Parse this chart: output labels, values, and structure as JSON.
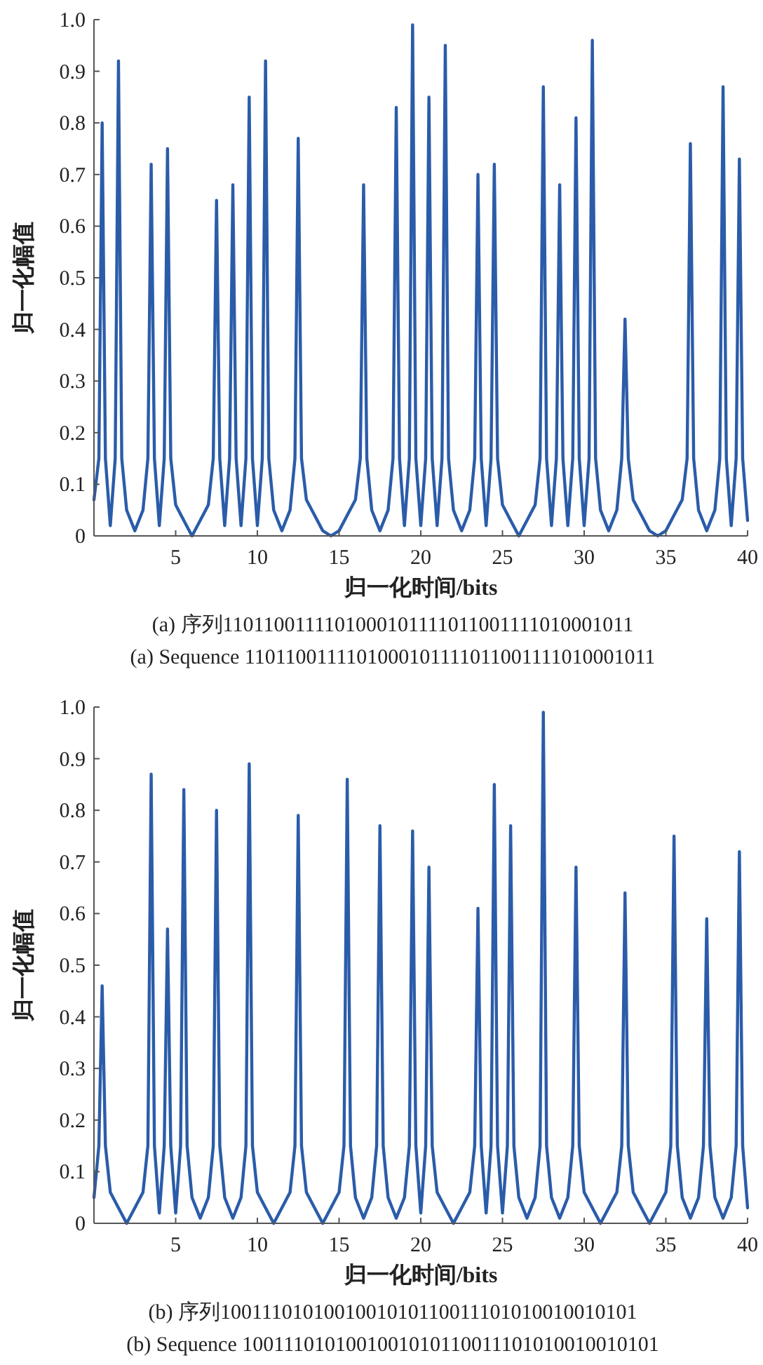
{
  "chart_data": [
    {
      "type": "line",
      "xlabel": "归一化时间/bits",
      "ylabel": "归一化幅值",
      "xlim": [
        0,
        40
      ],
      "ylim": [
        0,
        1
      ],
      "xticks": [
        5,
        10,
        15,
        20,
        25,
        30,
        35,
        40
      ],
      "yticks": [
        0,
        0.1,
        0.2,
        0.3,
        0.4,
        0.5,
        0.6,
        0.7,
        0.8,
        0.9,
        {
          "value": 1,
          "label": "1.0"
        }
      ],
      "annotations": [
        "(a) 序列1101100111101000101111011001111010001011",
        "(a) Sequence 1101100111101000101111011001111010001011"
      ],
      "x": [
        0,
        0.3,
        0.5,
        0.7,
        1.0,
        1.3,
        1.5,
        1.7,
        2.0,
        2.5,
        3.0,
        3.3,
        3.5,
        3.7,
        4.0,
        4.3,
        4.5,
        4.7,
        5.0,
        5.5,
        6.0,
        6.5,
        7.0,
        7.3,
        7.5,
        7.7,
        8.0,
        8.3,
        8.5,
        8.7,
        9.0,
        9.3,
        9.5,
        9.7,
        10.0,
        10.3,
        10.5,
        10.7,
        11.0,
        11.5,
        12.0,
        12.3,
        12.5,
        12.7,
        13.0,
        13.5,
        14.0,
        14.5,
        15.0,
        15.5,
        16.0,
        16.3,
        16.5,
        16.7,
        17.0,
        17.5,
        18.0,
        18.3,
        18.5,
        18.7,
        19.0,
        19.3,
        19.5,
        19.7,
        20.0,
        20.3,
        20.5,
        20.7,
        21.0,
        21.3,
        21.5,
        21.7,
        22.0,
        22.5,
        23.0,
        23.3,
        23.5,
        23.7,
        24.0,
        24.3,
        24.5,
        24.7,
        25.0,
        25.5,
        26.0,
        26.5,
        27.0,
        27.3,
        27.5,
        27.7,
        28.0,
        28.3,
        28.5,
        28.7,
        29.0,
        29.3,
        29.5,
        29.7,
        30.0,
        30.3,
        30.5,
        30.7,
        31.0,
        31.5,
        32.0,
        32.3,
        32.5,
        32.7,
        33.0,
        33.5,
        34.0,
        34.5,
        35.0,
        35.5,
        36.0,
        36.3,
        36.5,
        36.7,
        37.0,
        37.5,
        38.0,
        38.3,
        38.5,
        38.7,
        39.0,
        39.3,
        39.5,
        39.7,
        40
      ],
      "series": [
        {
          "color": "#2a5caa",
          "values": [
            0.07,
            0.15,
            0.8,
            0.15,
            0.02,
            0.15,
            0.92,
            0.15,
            0.05,
            0.01,
            0.05,
            0.15,
            0.72,
            0.15,
            0.02,
            0.15,
            0.75,
            0.15,
            0.06,
            0.03,
            0.0,
            0.03,
            0.06,
            0.15,
            0.65,
            0.15,
            0.02,
            0.15,
            0.68,
            0.15,
            0.02,
            0.15,
            0.85,
            0.15,
            0.02,
            0.15,
            0.92,
            0.15,
            0.05,
            0.01,
            0.05,
            0.15,
            0.77,
            0.15,
            0.07,
            0.04,
            0.01,
            0.0,
            0.01,
            0.04,
            0.07,
            0.15,
            0.68,
            0.15,
            0.05,
            0.01,
            0.05,
            0.15,
            0.83,
            0.15,
            0.02,
            0.15,
            0.99,
            0.15,
            0.02,
            0.15,
            0.85,
            0.15,
            0.02,
            0.15,
            0.95,
            0.15,
            0.05,
            0.01,
            0.05,
            0.15,
            0.7,
            0.15,
            0.02,
            0.15,
            0.72,
            0.15,
            0.06,
            0.03,
            0.0,
            0.03,
            0.06,
            0.15,
            0.87,
            0.15,
            0.02,
            0.15,
            0.68,
            0.15,
            0.02,
            0.15,
            0.81,
            0.15,
            0.02,
            0.15,
            0.96,
            0.15,
            0.05,
            0.01,
            0.05,
            0.15,
            0.42,
            0.15,
            0.07,
            0.04,
            0.01,
            0.0,
            0.01,
            0.04,
            0.07,
            0.15,
            0.76,
            0.15,
            0.05,
            0.01,
            0.05,
            0.15,
            0.87,
            0.15,
            0.02,
            0.15,
            0.73,
            0.15,
            0.03
          ]
        }
      ]
    },
    {
      "type": "line",
      "xlabel": "归一化时间/bits",
      "ylabel": "归一化幅值",
      "xlim": [
        0,
        40
      ],
      "ylim": [
        0,
        1
      ],
      "xticks": [
        5,
        10,
        15,
        20,
        25,
        30,
        35,
        40
      ],
      "yticks": [
        0,
        0.1,
        0.2,
        0.3,
        0.4,
        0.5,
        0.6,
        0.7,
        0.8,
        0.9,
        {
          "value": 1,
          "label": "1.0"
        }
      ],
      "annotations": [
        "(b) 序列1001110101001001010110011101010010010101",
        "(b) Sequence 1001110101001001010110011101010010010101"
      ],
      "x": [
        0,
        0.3,
        0.5,
        0.7,
        1.0,
        1.5,
        2.0,
        2.5,
        3.0,
        3.3,
        3.5,
        3.7,
        4.0,
        4.3,
        4.5,
        4.7,
        5.0,
        5.3,
        5.5,
        5.7,
        6.0,
        6.5,
        7.0,
        7.3,
        7.5,
        7.7,
        8.0,
        8.5,
        9.0,
        9.3,
        9.5,
        9.7,
        10.0,
        10.5,
        11.0,
        11.5,
        12.0,
        12.3,
        12.5,
        12.7,
        13.0,
        13.5,
        14.0,
        14.5,
        15.0,
        15.3,
        15.5,
        15.7,
        16.0,
        16.5,
        17.0,
        17.3,
        17.5,
        17.7,
        18.0,
        18.5,
        19.0,
        19.3,
        19.5,
        19.7,
        20.0,
        20.3,
        20.5,
        20.7,
        21.0,
        21.5,
        22.0,
        22.5,
        23.0,
        23.3,
        23.5,
        23.7,
        24.0,
        24.3,
        24.5,
        24.7,
        25.0,
        25.3,
        25.5,
        25.7,
        26.0,
        26.5,
        27.0,
        27.3,
        27.5,
        27.7,
        28.0,
        28.5,
        29.0,
        29.3,
        29.5,
        29.7,
        30.0,
        30.5,
        31.0,
        31.5,
        32.0,
        32.3,
        32.5,
        32.7,
        33.0,
        33.5,
        34.0,
        34.5,
        35.0,
        35.3,
        35.5,
        35.7,
        36.0,
        36.5,
        37.0,
        37.3,
        37.5,
        37.7,
        38.0,
        38.5,
        39.0,
        39.3,
        39.5,
        39.7,
        40
      ],
      "series": [
        {
          "color": "#2a5caa",
          "values": [
            0.05,
            0.15,
            0.46,
            0.15,
            0.06,
            0.03,
            0.0,
            0.03,
            0.06,
            0.15,
            0.87,
            0.15,
            0.02,
            0.15,
            0.57,
            0.15,
            0.02,
            0.15,
            0.84,
            0.15,
            0.05,
            0.01,
            0.05,
            0.15,
            0.8,
            0.15,
            0.05,
            0.01,
            0.05,
            0.15,
            0.89,
            0.15,
            0.06,
            0.03,
            0.0,
            0.03,
            0.06,
            0.15,
            0.79,
            0.15,
            0.06,
            0.03,
            0.0,
            0.03,
            0.06,
            0.15,
            0.86,
            0.15,
            0.05,
            0.01,
            0.05,
            0.15,
            0.77,
            0.15,
            0.05,
            0.01,
            0.05,
            0.15,
            0.76,
            0.15,
            0.02,
            0.15,
            0.69,
            0.15,
            0.06,
            0.03,
            0.0,
            0.03,
            0.06,
            0.15,
            0.61,
            0.15,
            0.02,
            0.15,
            0.85,
            0.15,
            0.02,
            0.15,
            0.77,
            0.15,
            0.05,
            0.01,
            0.05,
            0.15,
            0.99,
            0.15,
            0.05,
            0.01,
            0.05,
            0.15,
            0.69,
            0.15,
            0.06,
            0.03,
            0.0,
            0.03,
            0.06,
            0.15,
            0.64,
            0.15,
            0.06,
            0.03,
            0.0,
            0.03,
            0.06,
            0.15,
            0.75,
            0.15,
            0.05,
            0.01,
            0.05,
            0.15,
            0.59,
            0.15,
            0.05,
            0.01,
            0.05,
            0.15,
            0.72,
            0.15,
            0.03
          ]
        }
      ]
    }
  ]
}
